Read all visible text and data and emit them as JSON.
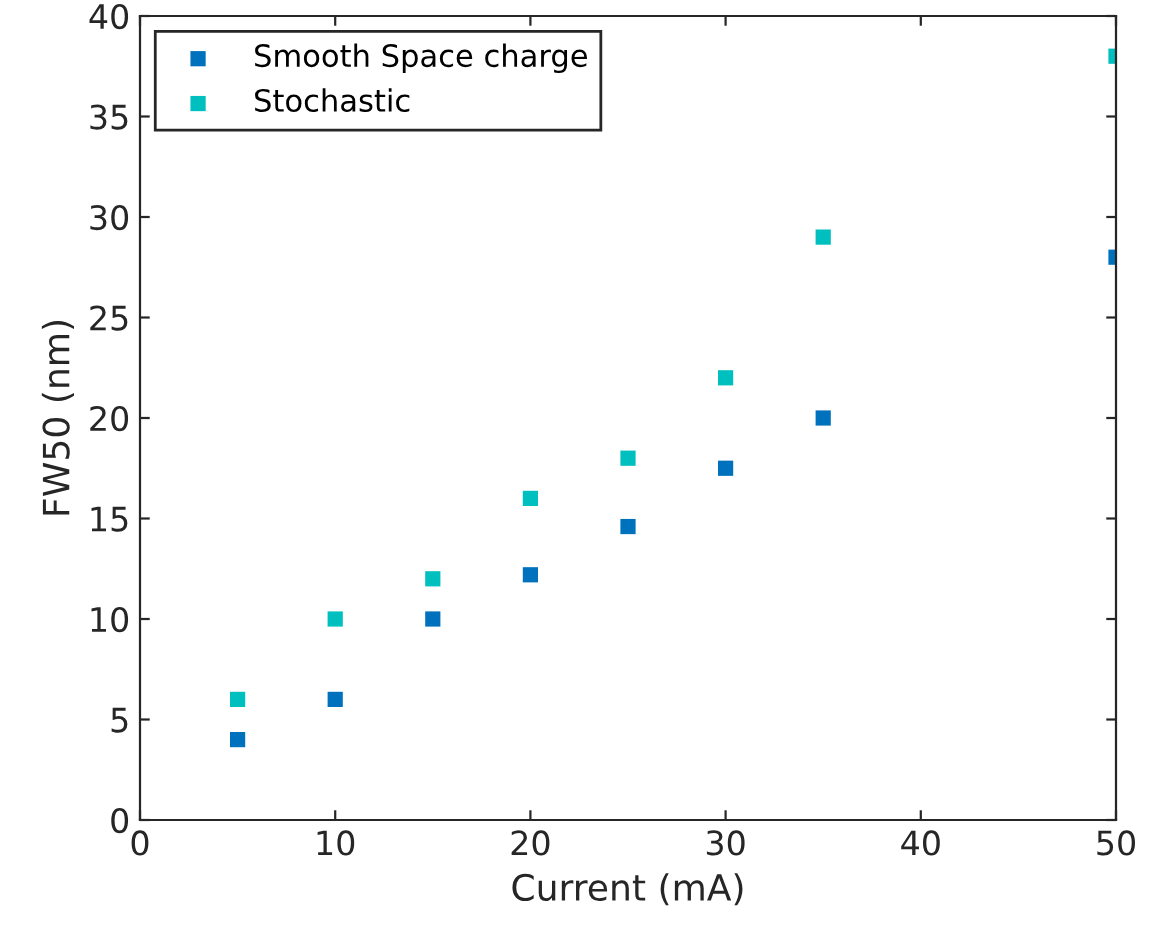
{
  "chart_data": {
    "type": "scatter",
    "xlabel": "Current (mA)",
    "ylabel": "FW50 (nm)",
    "x": [
      5,
      10,
      15,
      20,
      25,
      30,
      35,
      50
    ],
    "series": [
      {
        "name": "Smooth Space charge",
        "color": "#0072bd",
        "values": [
          4,
          6,
          10,
          12.2,
          14.6,
          17.5,
          20,
          28
        ]
      },
      {
        "name": "Stochastic",
        "color": "#00bfbf",
        "values": [
          6,
          10,
          12,
          16,
          18,
          22,
          29,
          38
        ]
      }
    ],
    "xlim": [
      0,
      50
    ],
    "xticks": [
      0,
      10,
      20,
      30,
      40,
      50
    ],
    "ylim": [
      0,
      40
    ],
    "yticks": [
      0,
      5,
      10,
      15,
      20,
      25,
      30,
      35,
      40
    ],
    "marker": "square",
    "legend": "top left",
    "grid": false
  }
}
